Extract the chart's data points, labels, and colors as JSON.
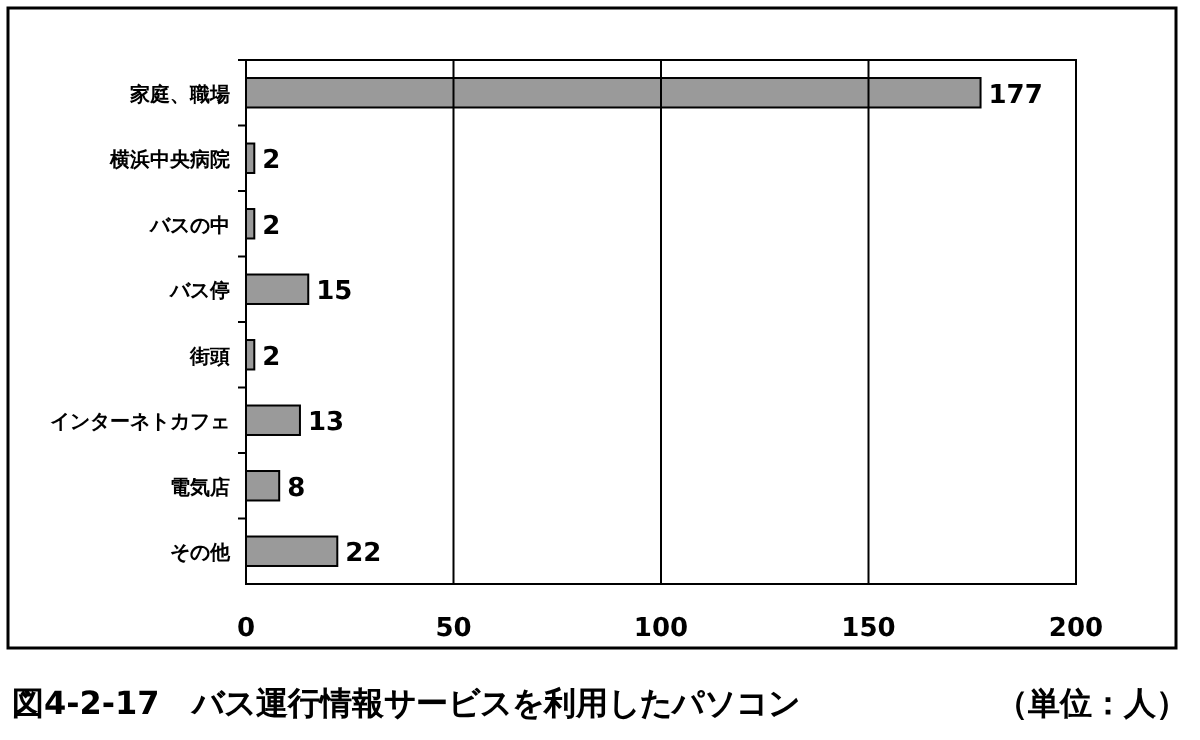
{
  "chart_data": {
    "type": "bar",
    "orientation": "horizontal",
    "title": "図4-2-17　バス運行情報サービスを利用したパソコン",
    "subtitle": "（単位：人）",
    "categories": [
      "家庭、職場",
      "横浜中央病院",
      "バスの中",
      "バス停",
      "街頭",
      "インターネトカフェ",
      "電気店",
      "その他"
    ],
    "values": [
      177,
      2,
      2,
      15,
      2,
      13,
      8,
      22
    ],
    "color": "#9a9a9a",
    "data_labels": true,
    "xlim": [
      0,
      200
    ],
    "xticks": [
      0,
      50,
      100,
      150,
      200
    ],
    "grid": "x"
  }
}
